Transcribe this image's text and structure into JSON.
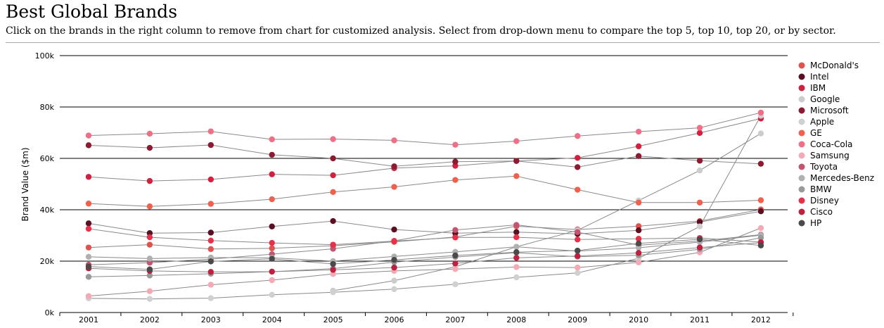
{
  "header": {
    "title": "Best Global Brands",
    "subtitle": "Click on the brands in the right column to remove from chart for customized analysis. Select from drop-down menu to compare the top 5, top 10, top 20, or by sector."
  },
  "chart_data": {
    "type": "line",
    "title": "Best Global Brands",
    "xlabel": "",
    "ylabel": "Brand Value ($m)",
    "ylim": [
      0,
      100000
    ],
    "yticks": [
      0,
      20000,
      40000,
      60000,
      80000,
      100000
    ],
    "ytick_labels": [
      "0k",
      "20k",
      "40k",
      "60k",
      "80k",
      "100k"
    ],
    "grid": true,
    "legend_position": "right",
    "categories": [
      "2001",
      "2002",
      "2003",
      "2004",
      "2005",
      "2006",
      "2007",
      "2008",
      "2009",
      "2010",
      "2011",
      "2012"
    ],
    "series": [
      {
        "name": "McDonald's",
        "color": "#e0524d",
        "values": [
          25300,
          26400,
          24700,
          25000,
          26000,
          27500,
          29400,
          33600,
          32300,
          33600,
          35600,
          40100
        ]
      },
      {
        "name": "Intel",
        "color": "#5a0f22",
        "values": [
          34700,
          30900,
          31100,
          33500,
          35600,
          32300,
          30900,
          31300,
          30600,
          32000,
          35200,
          39400
        ]
      },
      {
        "name": "IBM",
        "color": "#d42040",
        "values": [
          52800,
          51200,
          51800,
          53800,
          53400,
          56200,
          57100,
          59000,
          60200,
          64700,
          69900,
          75500
        ]
      },
      {
        "name": "Google",
        "color": "#cccccc",
        "values": [
          null,
          null,
          null,
          null,
          8500,
          12400,
          17800,
          25600,
          32000,
          43600,
          55300,
          69700
        ]
      },
      {
        "name": "Microsoft",
        "color": "#8c1a30",
        "values": [
          65100,
          64100,
          65200,
          61400,
          60000,
          56900,
          58700,
          59000,
          56600,
          60900,
          59100,
          57900
        ]
      },
      {
        "name": "Apple",
        "color": "#d0d0d0",
        "values": [
          5500,
          5300,
          5600,
          6900,
          7900,
          9100,
          11000,
          13700,
          15400,
          21100,
          33500,
          76600
        ]
      },
      {
        "name": "GE",
        "color": "#f0604d",
        "values": [
          42400,
          41300,
          42300,
          44100,
          46900,
          48900,
          51600,
          53100,
          47800,
          42800,
          42800,
          43700
        ]
      },
      {
        "name": "Coca-Cola",
        "color": "#ee6f86",
        "values": [
          68900,
          69600,
          70500,
          67400,
          67500,
          67000,
          65300,
          66700,
          68700,
          70400,
          71900,
          77800
        ]
      },
      {
        "name": "Samsung",
        "color": "#f4a9b5",
        "values": [
          6400,
          8300,
          10800,
          12600,
          15000,
          16200,
          16900,
          17700,
          17500,
          19500,
          23400,
          32900
        ]
      },
      {
        "name": "Toyota",
        "color": "#c45570",
        "values": [
          18600,
          19400,
          20800,
          22700,
          24800,
          27900,
          32100,
          34100,
          31300,
          26200,
          27800,
          30300
        ]
      },
      {
        "name": "Mercedes-Benz",
        "color": "#b0b0b0",
        "values": [
          21700,
          21000,
          21400,
          21300,
          20000,
          21800,
          23600,
          25600,
          23900,
          25200,
          27400,
          30100
        ]
      },
      {
        "name": "BMW",
        "color": "#999999",
        "values": [
          13900,
          14400,
          15100,
          15900,
          17100,
          19600,
          21600,
          23300,
          21700,
          22300,
          24600,
          29100
        ]
      },
      {
        "name": "Disney",
        "color": "#e8304a",
        "values": [
          32600,
          29300,
          28000,
          27100,
          26400,
          27800,
          29200,
          29300,
          28400,
          28700,
          29000,
          27400
        ]
      },
      {
        "name": "Cisco",
        "color": "#c0203f",
        "values": [
          17200,
          16200,
          15800,
          15900,
          16600,
          17500,
          19100,
          21300,
          22000,
          23200,
          25300,
          27200
        ]
      },
      {
        "name": "HP",
        "color": "#4a4a4a",
        "values": [
          17900,
          16800,
          19900,
          20900,
          18900,
          20500,
          22200,
          23500,
          24100,
          26900,
          28500,
          26100
        ]
      }
    ]
  }
}
